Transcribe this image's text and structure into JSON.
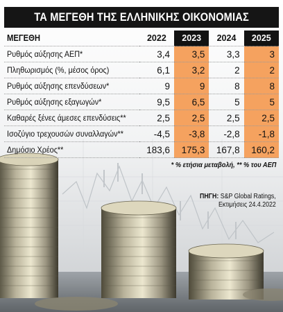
{
  "title": "ΤΑ ΜΕΓΕΘΗ ΤΗΣ ΕΛΛΗΝΙΚΗΣ ΟΙΚΟΝΟΜΙΑΣ",
  "table": {
    "header": {
      "label": "ΜΕΓΕΘΗ",
      "years": [
        "2022",
        "2023",
        "2024",
        "2025"
      ]
    },
    "rows": [
      {
        "label": "Ρυθμός αύξησης ΑΕΠ*",
        "values": [
          "3,4",
          "3,5",
          "3,3",
          "3"
        ]
      },
      {
        "label": "Πληθωρισμός (%, μέσος όρος)",
        "values": [
          "6,1",
          "3,2",
          "2",
          "2"
        ]
      },
      {
        "label": "Ρυθμός αύξησης επενδύσεων*",
        "values": [
          "9",
          "9",
          "8",
          "8"
        ]
      },
      {
        "label": "Ρυθμός αύξησης εξαγωγών*",
        "values": [
          "9,5",
          "6,5",
          "5",
          "5"
        ]
      },
      {
        "label": "Καθαρές ξένες άμεσες επενδύσεις**",
        "values": [
          "2,5",
          "2,5",
          "2,5",
          "2,5"
        ]
      },
      {
        "label": "Ισοζύγιο τρεχουσών συναλλαγών**",
        "values": [
          "-4,5",
          "-3,8",
          "-2,8",
          "-1,8"
        ]
      },
      {
        "label": "Δημόσιο Χρέος**",
        "values": [
          "183,6",
          "175,3",
          "167,8",
          "160,2"
        ]
      }
    ]
  },
  "footnote": "* % ετήσια μεταβολή, ** % του ΑΕΠ",
  "source": {
    "label": "ΠΗΓΗ:",
    "line1": "S&P Global Ratings,",
    "line2": "Εκτιμήσεις 24.4.2022"
  },
  "colors": {
    "highlight": "#f5a25f",
    "dark": "#121212"
  }
}
